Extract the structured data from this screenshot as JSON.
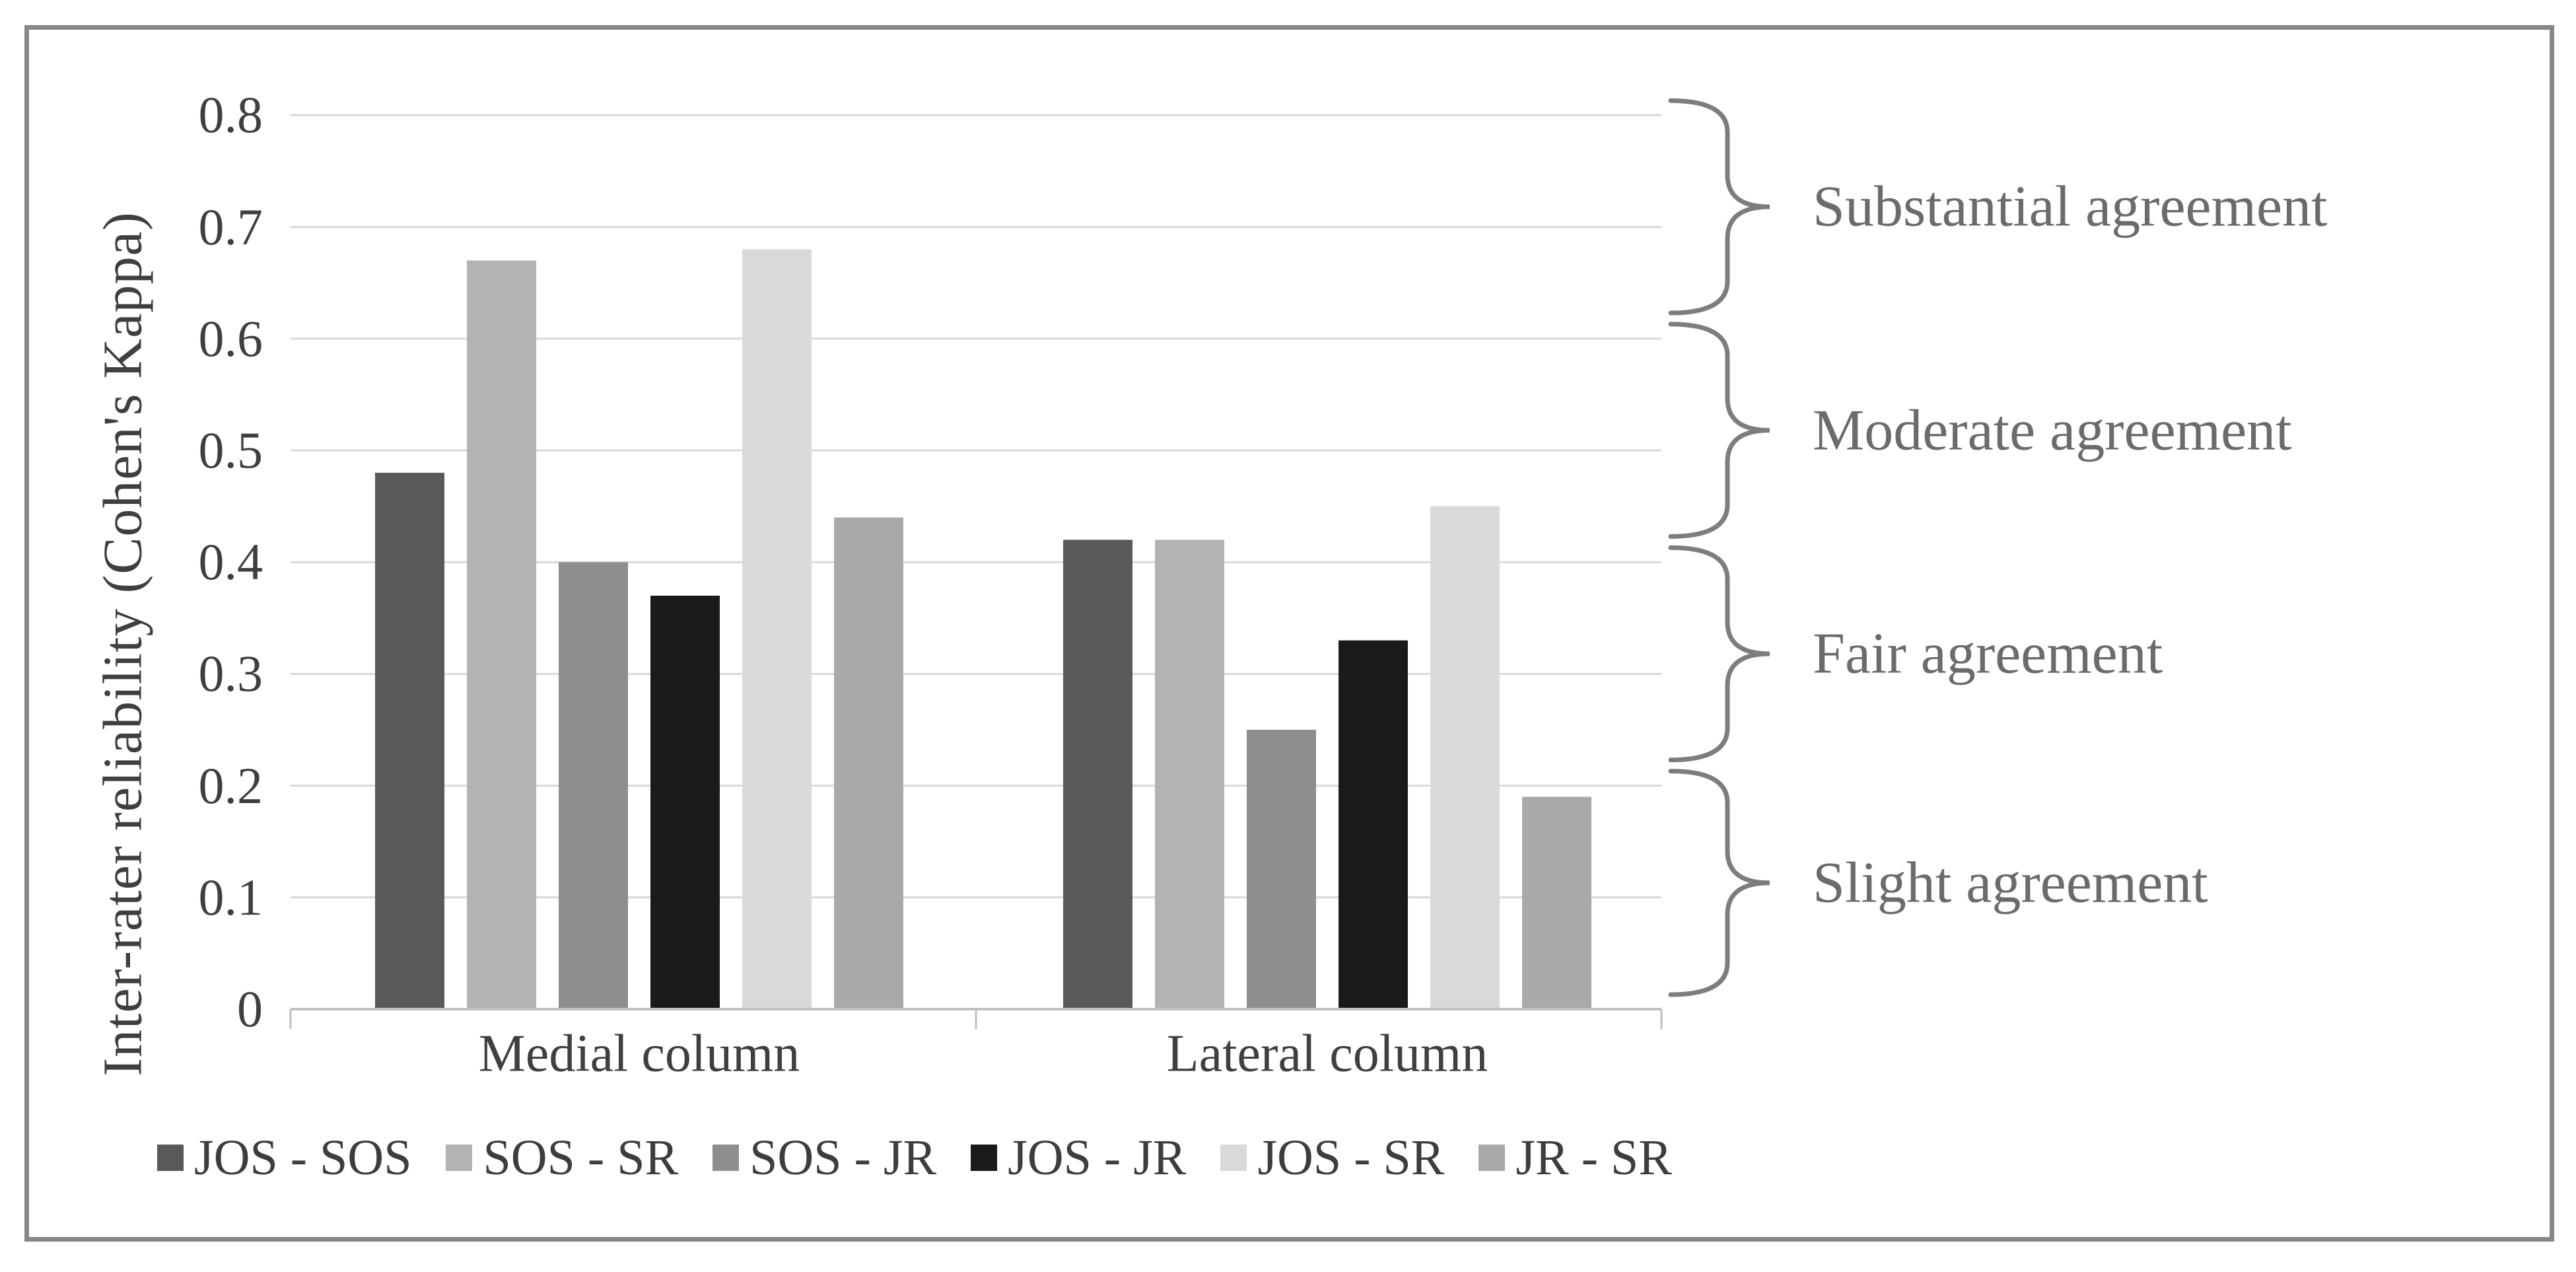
{
  "figure": {
    "border_color": "#878787",
    "background": "#ffffff"
  },
  "chart_data": {
    "type": "bar",
    "title": "",
    "xlabel": "",
    "ylabel": "Inter-rater reliability (Cohen's Kappa)",
    "categories": [
      "Medial column",
      "Lateral column"
    ],
    "series": [
      {
        "name": "JOS - SOS",
        "color": "#595959",
        "values": [
          0.48,
          0.42
        ]
      },
      {
        "name": "SOS - SR",
        "color": "#b3b3b3",
        "values": [
          0.67,
          0.42
        ]
      },
      {
        "name": "SOS - JR",
        "color": "#8e8e8e",
        "values": [
          0.4,
          0.25
        ]
      },
      {
        "name": "JOS - JR",
        "color": "#1a1a1a",
        "values": [
          0.37,
          0.33
        ]
      },
      {
        "name": "JOS - SR",
        "color": "#d9d9d9",
        "values": [
          0.68,
          0.45
        ]
      },
      {
        "name": "JR - SR",
        "color": "#a9a9a9",
        "values": [
          0.44,
          0.19
        ]
      }
    ],
    "ylim": [
      0,
      0.8
    ],
    "y_ticks": [
      0,
      0.1,
      0.2,
      0.3,
      0.4,
      0.5,
      0.6,
      0.7,
      0.8
    ],
    "y_tick_labels": [
      "0",
      "0.1",
      "0.2",
      "0.3",
      "0.4",
      "0.5",
      "0.6",
      "0.7",
      "0.8"
    ],
    "grid": true,
    "legend_position": "bottom",
    "annotations": [
      {
        "label": "Substantial agreement",
        "kappa_range": [
          0.61,
          0.8
        ]
      },
      {
        "label": "Moderate agreement",
        "kappa_range": [
          0.41,
          0.6
        ]
      },
      {
        "label": "Fair agreement",
        "kappa_range": [
          0.21,
          0.4
        ]
      },
      {
        "label": "Slight agreement",
        "kappa_range": [
          0.0,
          0.2
        ]
      }
    ],
    "colors": {
      "gridline": "#d9d9d9",
      "axis_line": "#c0c0c0",
      "axis_text": "#3f3f3f",
      "legend_text": "#3d3d3d",
      "annotation_text": "#6b6b6b",
      "brace": "#7d7d7d"
    }
  }
}
